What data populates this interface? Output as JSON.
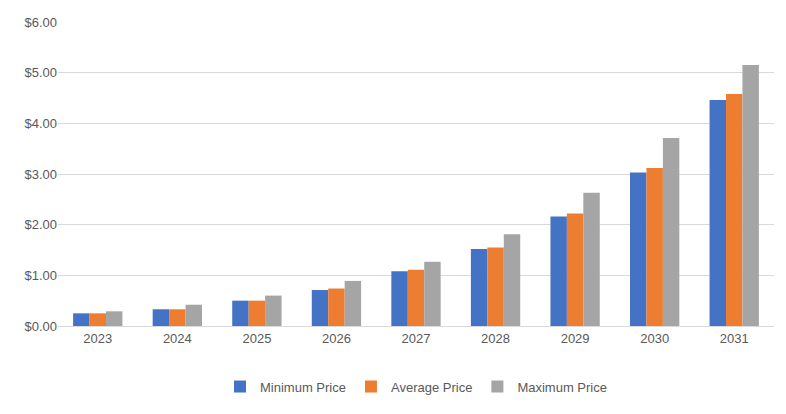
{
  "chart_data": {
    "type": "bar",
    "categories": [
      "2023",
      "2024",
      "2025",
      "2026",
      "2027",
      "2028",
      "2029",
      "2030",
      "2031"
    ],
    "series": [
      {
        "name": "Minimum Price",
        "color": "#4472C4",
        "values": [
          0.25,
          0.33,
          0.5,
          0.71,
          1.08,
          1.52,
          2.16,
          3.03,
          4.46
        ]
      },
      {
        "name": "Average Price",
        "color": "#ED7D31",
        "values": [
          0.25,
          0.33,
          0.5,
          0.74,
          1.11,
          1.55,
          2.22,
          3.12,
          4.58
        ]
      },
      {
        "name": "Maximum Price",
        "color": "#A5A5A5",
        "values": [
          0.29,
          0.42,
          0.6,
          0.89,
          1.27,
          1.81,
          2.63,
          3.71,
          5.15
        ]
      }
    ],
    "ylim": [
      0,
      6
    ],
    "yticks": [
      {
        "value": 0,
        "label": "$0.00"
      },
      {
        "value": 1,
        "label": "$1.00"
      },
      {
        "value": 2,
        "label": "$2.00"
      },
      {
        "value": 3,
        "label": "$3.00"
      },
      {
        "value": 4,
        "label": "$4.00"
      },
      {
        "value": 5,
        "label": "$5.00"
      },
      {
        "value": 6,
        "label": "$6.00"
      }
    ],
    "grid": true,
    "legend": "bottom"
  }
}
